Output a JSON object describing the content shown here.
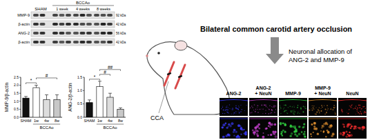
{
  "blot": {
    "header_left": "SHAM",
    "header_group": "BCCAo",
    "timepoints": [
      "1 week",
      "4 weeks",
      "8 weeks"
    ],
    "rows": [
      {
        "label": "MMP-9",
        "size": "92 kDa"
      },
      {
        "label": "β-actin",
        "size": "42 kDa"
      },
      {
        "label": "ANG-2",
        "size": "56 kDa"
      },
      {
        "label": "β-actin",
        "size": "42 kDa"
      }
    ]
  },
  "chart_data": [
    {
      "type": "bar",
      "y_label": "MMP-9/β-actin",
      "categories": [
        "SHAM",
        "1w",
        "4w",
        "8w"
      ],
      "group": {
        "label": "BCCAo",
        "from": 1,
        "to": 3
      },
      "values": [
        1.2,
        1.85,
        1.1,
        1.1
      ],
      "errors": [
        0.1,
        0.15,
        0.3,
        0.3
      ],
      "colors": [
        "#111111",
        "#ffffff",
        "#dddddd",
        "#c8c8c8"
      ],
      "ylim": [
        0,
        2.5
      ],
      "yticks": [
        {
          "value": 0,
          "label": "0.0"
        },
        {
          "value": 0.5,
          "label": "0.5"
        },
        {
          "value": 1,
          "label": "1.0"
        },
        {
          "value": 1.5,
          "label": "1.5"
        },
        {
          "value": 2,
          "label": "2.0"
        },
        {
          "value": 2.5,
          "label": "2.5"
        }
      ],
      "annotations": [
        {
          "text": "*",
          "bars": [
            0,
            1
          ]
        },
        {
          "text": "#",
          "bars": [
            1,
            3
          ]
        }
      ]
    },
    {
      "type": "bar",
      "y_label": "ANG-2/β-actin",
      "categories": [
        "SHAM",
        "1w",
        "4w",
        "8w"
      ],
      "group": {
        "label": "BCCAo",
        "from": 1,
        "to": 3
      },
      "values": [
        0.55,
        1.15,
        0.75,
        0.3
      ],
      "errors": [
        0.1,
        0.2,
        0.15,
        0.05
      ],
      "colors": [
        "#111111",
        "#ffffff",
        "#dddddd",
        "#c8c8c8"
      ],
      "ylim": [
        0,
        1.5
      ],
      "yticks": [
        {
          "value": 0,
          "label": "0.0"
        },
        {
          "value": 0.5,
          "label": "0.5"
        },
        {
          "value": 1,
          "label": "1.0"
        },
        {
          "value": 1.5,
          "label": "1.5"
        }
      ],
      "annotations": [
        {
          "text": "*",
          "bars": [
            0,
            1
          ]
        },
        {
          "text": "#",
          "bars": [
            1,
            2
          ]
        },
        {
          "text": "##",
          "bars": [
            1,
            3
          ]
        }
      ]
    }
  ],
  "diagram": {
    "title": "Bilateral common carotid artery occlusion",
    "artery_label": "CCA",
    "result": [
      "Neuronal allocation of",
      "ANG-2 and MMP-9"
    ]
  },
  "panels": {
    "columns": [
      {
        "label": [
          "ANG-2"
        ],
        "color": "#3c3cff"
      },
      {
        "label": [
          "ANG-2",
          "+ NeuN"
        ],
        "color": "#c040c8"
      },
      {
        "label": [
          "MMP-9"
        ],
        "color": "#30d040"
      },
      {
        "label": [
          "MMP-9",
          "+ NeuN"
        ],
        "color": "#e09030"
      },
      {
        "label": [
          "NeuN"
        ],
        "color": "#ff3030"
      }
    ]
  }
}
